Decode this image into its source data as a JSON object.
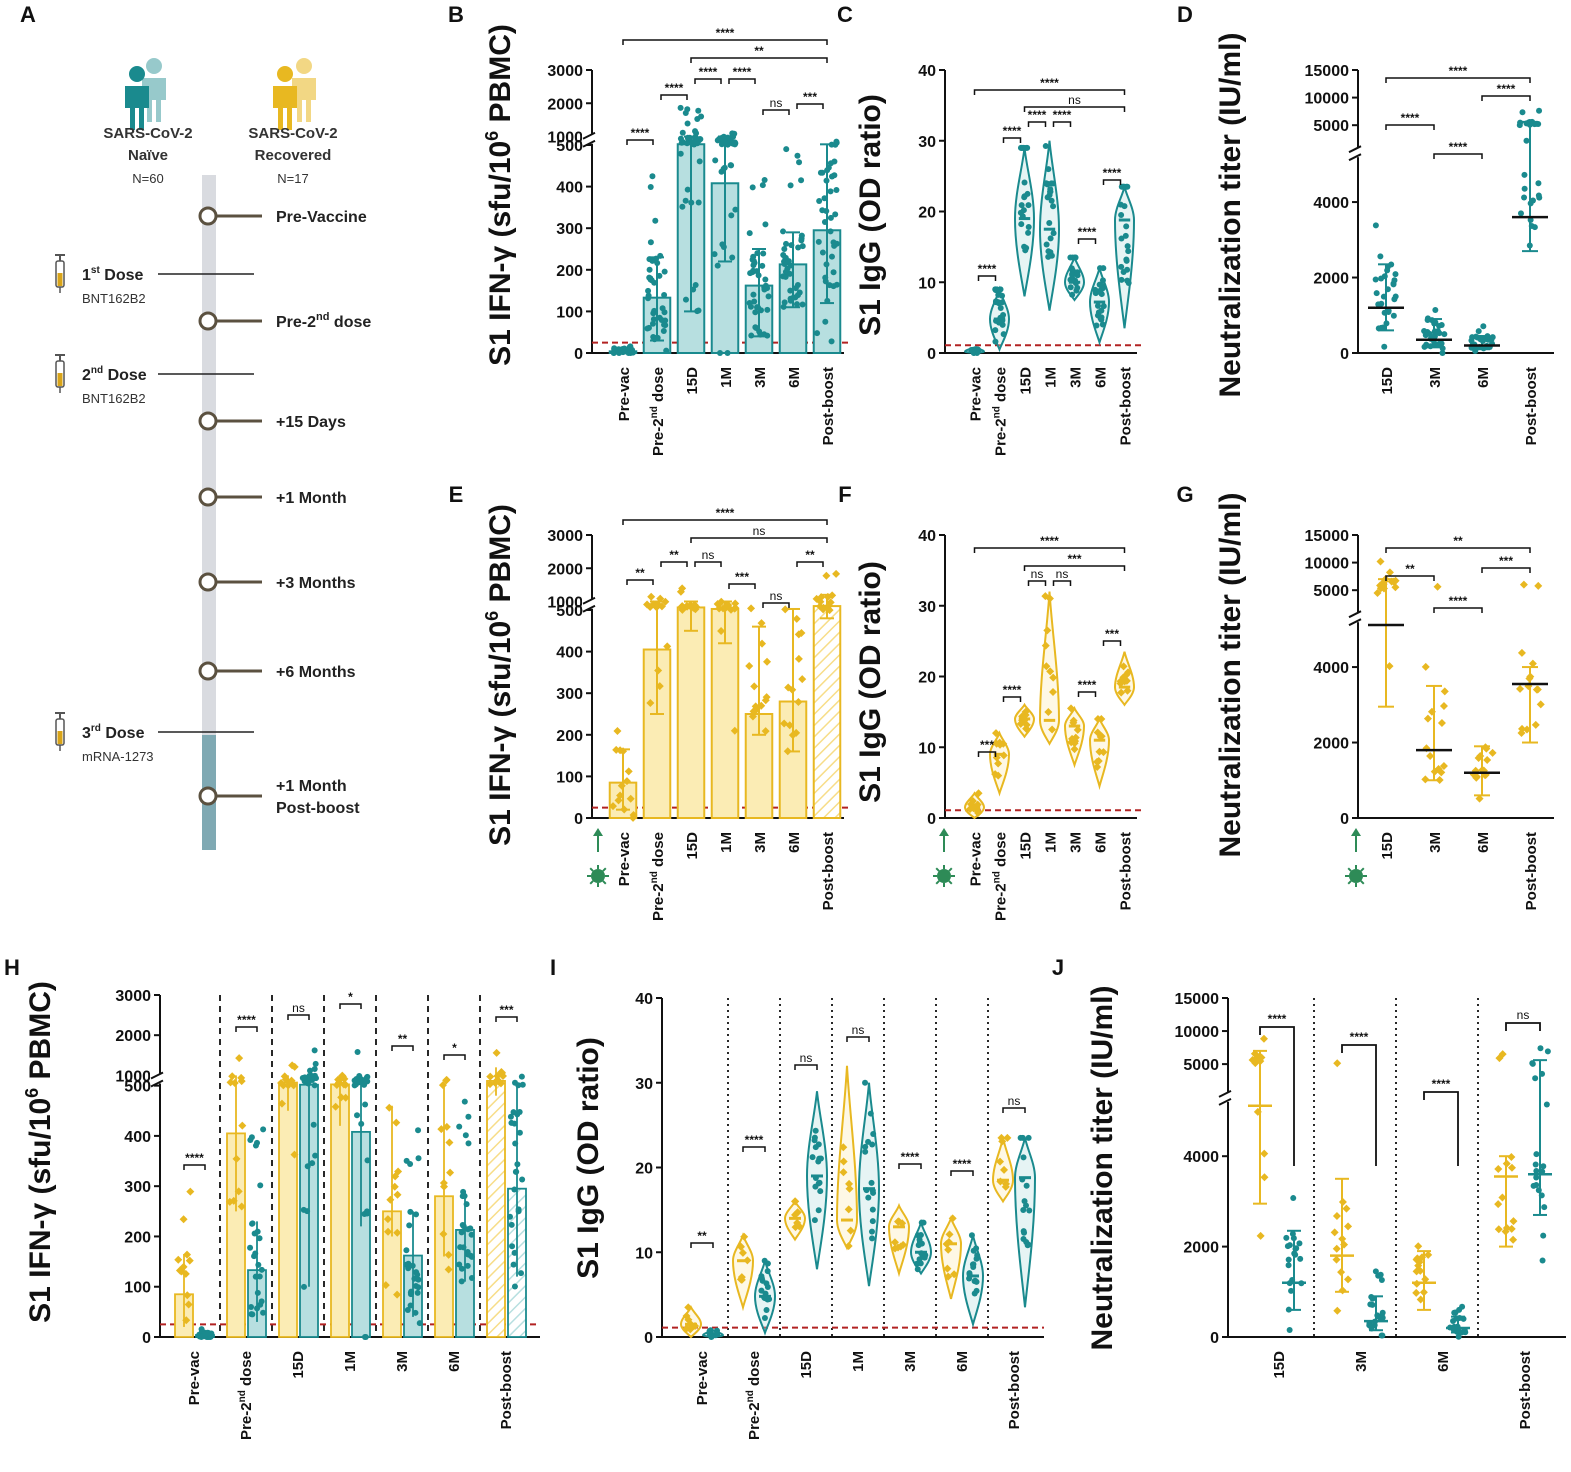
{
  "colors": {
    "naive": "#1a8a8e",
    "naive_fill": "#b7dfe0",
    "recovered": "#e8b821",
    "recovered_fill": "#fbecb4",
    "threshold": "#b22222",
    "axis": "#111111",
    "infection_arrow": "#2e8b57"
  },
  "timeline": {
    "panel_label": "A",
    "cohorts": [
      {
        "name_line1": "SARS-CoV-2",
        "name_line2": "Naïve",
        "n": "N=60",
        "color": "#1a8a8e"
      },
      {
        "name_line1": "SARS-CoV-2",
        "name_line2": "Recovered",
        "n": "N=17",
        "color": "#e8b821"
      }
    ],
    "doses": [
      {
        "label": "1st Dose",
        "num": "1",
        "sup": "st",
        "word": " Dose",
        "vaccine": "BNT162B2"
      },
      {
        "label": "2nd Dose",
        "num": "2",
        "sup": "nd",
        "word": " Dose",
        "vaccine": "BNT162B2"
      },
      {
        "label": "3rd Dose",
        "num": "3",
        "sup": "rd",
        "word": " Dose",
        "vaccine": "mRNA-1273"
      }
    ],
    "timepoints": [
      {
        "label": "Pre-Vaccine"
      },
      {
        "label": "Pre-2nd dose",
        "main": "Pre-2",
        "sup": "nd",
        "rest": " dose"
      },
      {
        "label": "+15 Days"
      },
      {
        "label": "+1 Month"
      },
      {
        "label": "+3 Months"
      },
      {
        "label": "+6 Months"
      },
      {
        "label": "+1 Month Post-boost",
        "line1": "+1 Month",
        "line2": "Post-boost"
      }
    ]
  },
  "chart_data": [
    {
      "panel": "B",
      "type": "bar",
      "group": "naive",
      "ylabel": "S1 IFN-γ (sfu/10⁶ PBMC)",
      "categories": [
        "Pre-vac",
        "Pre-2nd dose",
        "15D",
        "1M",
        "3M",
        "6M",
        "Post-boost"
      ],
      "values": [
        4,
        133,
        545,
        408,
        162,
        213,
        295
      ],
      "err_low": [
        0,
        30,
        100,
        220,
        40,
        110,
        120
      ],
      "err_high": [
        10,
        230,
        1000,
        1000,
        250,
        290,
        540
      ],
      "yticks": [
        0,
        100,
        200,
        300,
        400,
        500,
        1000,
        2000,
        3000
      ],
      "threshold": 25,
      "significance": [
        {
          "from": "Pre-vac",
          "to": "Pre-2nd dose",
          "label": "****"
        },
        {
          "from": "Pre-2nd dose",
          "to": "15D",
          "label": "****"
        },
        {
          "from": "15D",
          "to": "1M",
          "label": "****"
        },
        {
          "from": "1M",
          "to": "3M",
          "label": "****"
        },
        {
          "from": "3M",
          "to": "6M",
          "label": "ns"
        },
        {
          "from": "6M",
          "to": "Post-boost",
          "label": "***"
        },
        {
          "from": "15D",
          "to": "Post-boost",
          "label": "**"
        },
        {
          "from": "Pre-vac",
          "to": "Post-boost",
          "label": "****"
        }
      ]
    },
    {
      "panel": "C",
      "type": "violin",
      "group": "naive",
      "ylabel": "S1 IgG (OD ratio)",
      "categories": [
        "Pre-vac",
        "Pre-2nd dose",
        "15D",
        "1M",
        "3M",
        "6M",
        "Post-boost"
      ],
      "medians": [
        0.2,
        4.8,
        19,
        17.5,
        10,
        7.2,
        18.8
      ],
      "ranges": [
        [
          0,
          0.8
        ],
        [
          0.5,
          9
        ],
        [
          8,
          29
        ],
        [
          6,
          30
        ],
        [
          7.5,
          13.5
        ],
        [
          1.5,
          12
        ],
        [
          3.5,
          23.5
        ]
      ],
      "ylim": [
        0,
        40
      ],
      "yticks": [
        0,
        10,
        20,
        30,
        40
      ],
      "threshold": 1.1,
      "significance": [
        {
          "from": "Pre-vac",
          "to": "Pre-2nd dose",
          "label": "****"
        },
        {
          "from": "Pre-2nd dose",
          "to": "15D",
          "label": "****"
        },
        {
          "from": "15D",
          "to": "1M",
          "label": "****"
        },
        {
          "from": "1M",
          "to": "3M",
          "label": "****"
        },
        {
          "from": "3M",
          "to": "6M",
          "label": "****"
        },
        {
          "from": "6M",
          "to": "Post-boost",
          "label": "****"
        },
        {
          "from": "15D",
          "to": "Post-boost",
          "label": "ns"
        },
        {
          "from": "Pre-vac",
          "to": "Post-boost",
          "label": "****"
        }
      ]
    },
    {
      "panel": "D",
      "type": "scatter",
      "group": "naive",
      "ylabel": "Neutralization titer (IU/ml)",
      "categories": [
        "15D",
        "3M",
        "6M",
        "Post-boost"
      ],
      "medians": [
        1200,
        350,
        200,
        3600
      ],
      "err_low": [
        600,
        150,
        100,
        2700
      ],
      "err_high": [
        2350,
        900,
        450,
        5600
      ],
      "yticks": [
        0,
        2000,
        4000,
        5000,
        10000,
        15000
      ],
      "significance": [
        {
          "from": "15D",
          "to": "3M",
          "label": "****"
        },
        {
          "from": "3M",
          "to": "6M",
          "label": "****"
        },
        {
          "from": "6M",
          "to": "Post-boost",
          "label": "****"
        },
        {
          "from": "15D",
          "to": "Post-boost",
          "label": "****"
        }
      ]
    },
    {
      "panel": "E",
      "type": "bar",
      "group": "recovered",
      "ylabel": "S1 IFN-γ (sfu/10⁶ PBMC)",
      "categories": [
        "Pre-vac",
        "Pre-2nd dose",
        "15D",
        "1M",
        "3M",
        "6M",
        "Post-boost"
      ],
      "values": [
        85,
        405,
        650,
        560,
        250,
        280,
        730
      ],
      "err_low": [
        20,
        250,
        450,
        420,
        200,
        160,
        480
      ],
      "err_high": [
        165,
        1000,
        1000,
        1000,
        460,
        560,
        1200
      ],
      "yticks": [
        0,
        100,
        200,
        300,
        400,
        500,
        1000,
        2000,
        3000
      ],
      "threshold": 25,
      "significance": [
        {
          "from": "Pre-vac",
          "to": "Pre-2nd dose",
          "label": "**"
        },
        {
          "from": "Pre-2nd dose",
          "to": "15D",
          "label": "**"
        },
        {
          "from": "15D",
          "to": "1M",
          "label": "ns"
        },
        {
          "from": "1M",
          "to": "3M",
          "label": "***"
        },
        {
          "from": "3M",
          "to": "6M",
          "label": "ns"
        },
        {
          "from": "6M",
          "to": "Post-boost",
          "label": "**"
        },
        {
          "from": "15D",
          "to": "Post-boost",
          "label": "ns"
        },
        {
          "from": "Pre-vac",
          "to": "Post-boost",
          "label": "****"
        }
      ]
    },
    {
      "panel": "F",
      "type": "violin",
      "group": "recovered",
      "ylabel": "S1 IgG (OD ratio)",
      "categories": [
        "Pre-vac",
        "Pre-2nd dose",
        "15D",
        "1M",
        "3M",
        "6M",
        "Post-boost"
      ],
      "medians": [
        1.5,
        9,
        14,
        13.8,
        13,
        11,
        18.5
      ],
      "ranges": [
        [
          0,
          3.5
        ],
        [
          3.5,
          12
        ],
        [
          11.5,
          16
        ],
        [
          10.5,
          32
        ],
        [
          7.5,
          15.5
        ],
        [
          4.5,
          14
        ],
        [
          16,
          23.5
        ]
      ],
      "ylim": [
        0,
        40
      ],
      "yticks": [
        0,
        10,
        20,
        30,
        40
      ],
      "threshold": 1.1,
      "significance": [
        {
          "from": "Pre-vac",
          "to": "Pre-2nd dose",
          "label": "***"
        },
        {
          "from": "Pre-2nd dose",
          "to": "15D",
          "label": "****"
        },
        {
          "from": "15D",
          "to": "1M",
          "label": "ns"
        },
        {
          "from": "1M",
          "to": "3M",
          "label": "ns"
        },
        {
          "from": "3M",
          "to": "6M",
          "label": "****"
        },
        {
          "from": "6M",
          "to": "Post-boost",
          "label": "***"
        },
        {
          "from": "15D",
          "to": "Post-boost",
          "label": "***"
        },
        {
          "from": "Pre-vac",
          "to": "Post-boost",
          "label": "****"
        }
      ]
    },
    {
      "panel": "G",
      "type": "scatter",
      "group": "recovered",
      "ylabel": "Neutralization titer (IU/ml)",
      "categories": [
        "15D",
        "3M",
        "6M",
        "Post-boost"
      ],
      "medians": [
        4700,
        1800,
        1200,
        3550
      ],
      "err_low": [
        2950,
        1000,
        600,
        2000
      ],
      "err_high": [
        7000,
        3500,
        1900,
        4000
      ],
      "yticks": [
        0,
        2000,
        4000,
        5000,
        10000,
        15000
      ],
      "significance": [
        {
          "from": "15D",
          "to": "3M",
          "label": "**"
        },
        {
          "from": "3M",
          "to": "6M",
          "label": "****"
        },
        {
          "from": "6M",
          "to": "Post-boost",
          "label": "***"
        },
        {
          "from": "15D",
          "to": "Post-boost",
          "label": "**"
        }
      ]
    },
    {
      "panel": "H",
      "type": "bar",
      "group": "comparison",
      "ylabel": "S1 IFN-γ (sfu/10⁶ PBMC)",
      "categories": [
        "Pre-vac",
        "Pre-2nd dose",
        "15D",
        "1M",
        "3M",
        "6M",
        "Post-boost"
      ],
      "series": [
        {
          "name": "Recovered",
          "values": [
            85,
            405,
            650,
            560,
            250,
            280,
            730
          ]
        },
        {
          "name": "Naïve",
          "values": [
            4,
            133,
            545,
            408,
            162,
            213,
            295
          ]
        }
      ],
      "yticks": [
        0,
        100,
        200,
        300,
        400,
        500,
        1000,
        2000,
        3000
      ],
      "threshold": 25,
      "significance": [
        "****",
        "****",
        "ns",
        "*",
        "**",
        "*",
        "***"
      ]
    },
    {
      "panel": "I",
      "type": "violin",
      "group": "comparison",
      "ylabel": "S1 IgG (OD ratio)",
      "categories": [
        "Pre-vac",
        "Pre-2nd dose",
        "15D",
        "1M",
        "3M",
        "6M",
        "Post-boost"
      ],
      "series": [
        {
          "name": "Recovered",
          "medians": [
            1.5,
            9,
            14,
            13.8,
            13,
            11,
            18.5
          ]
        },
        {
          "name": "Naïve",
          "medians": [
            0.2,
            4.8,
            19,
            17.5,
            10,
            7.2,
            18.8
          ]
        }
      ],
      "ylim": [
        0,
        40
      ],
      "yticks": [
        0,
        10,
        20,
        30,
        40
      ],
      "threshold": 1.1,
      "significance": [
        "**",
        "****",
        "ns",
        "ns",
        "****",
        "****",
        "ns"
      ]
    },
    {
      "panel": "J",
      "type": "scatter",
      "group": "comparison",
      "ylabel": "Neutralization titer (IU/ml)",
      "categories": [
        "15D",
        "3M",
        "6M",
        "Post-boost"
      ],
      "series": [
        {
          "name": "Recovered",
          "medians": [
            4700,
            1800,
            1200,
            3550
          ]
        },
        {
          "name": "Naïve",
          "medians": [
            1200,
            350,
            200,
            3600
          ]
        }
      ],
      "yticks": [
        0,
        2000,
        4000,
        5000,
        10000,
        15000
      ],
      "significance": [
        "****",
        "****",
        "****",
        "ns"
      ]
    }
  ]
}
